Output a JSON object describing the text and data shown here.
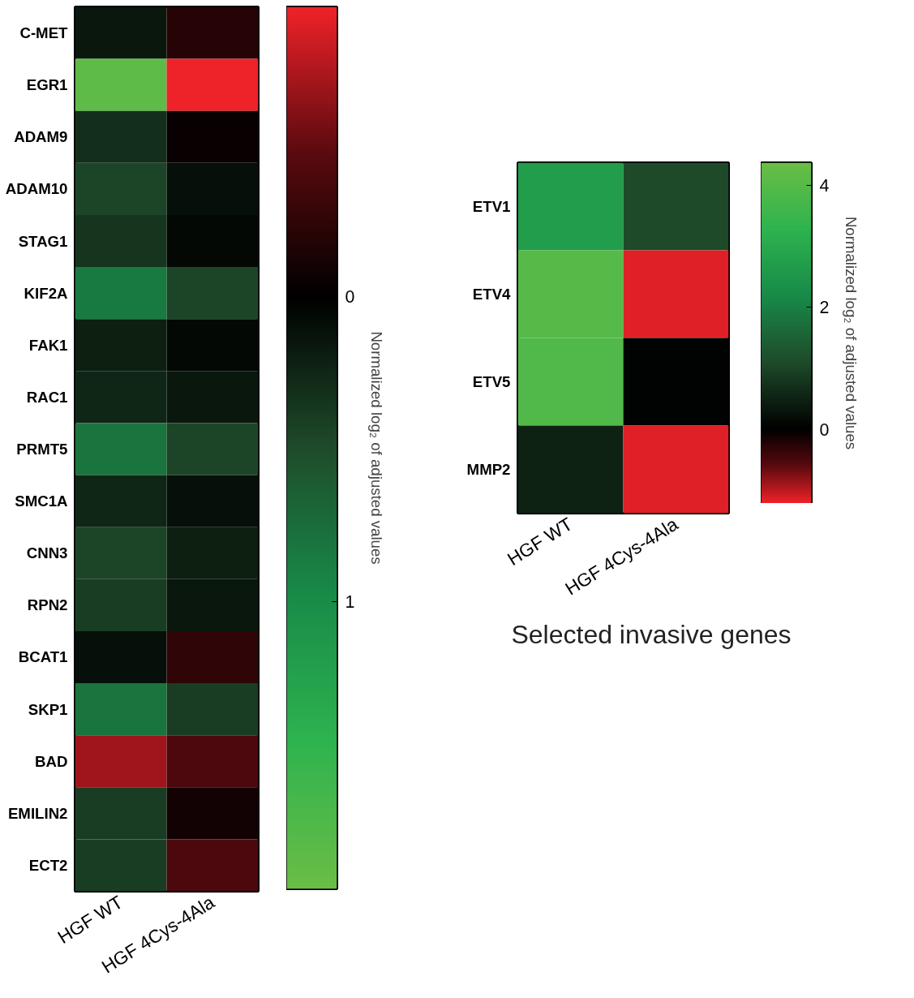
{
  "chart_data": [
    {
      "type": "heatmap",
      "categories": [
        "HGF WT",
        "HGF 4Cys-4Ala"
      ],
      "y_categories": [
        "C-MET",
        "EGR1",
        "ADAM9",
        "ADAM10",
        "STAG1",
        "KIF2A",
        "FAK1",
        "RAC1",
        "PRMT5",
        "SMC1A",
        "CNN3",
        "RPN2",
        "BCAT1",
        "SKP1",
        "BAD",
        "EMILIN2",
        "ECT2"
      ],
      "cells": [
        [
          0.15,
          -0.2
        ],
        [
          1.85,
          -0.95
        ],
        [
          0.3,
          -0.05
        ],
        [
          0.45,
          0.1
        ],
        [
          0.35,
          0.05
        ],
        [
          0.85,
          0.45
        ],
        [
          0.2,
          0.05
        ],
        [
          0.25,
          0.15
        ],
        [
          0.8,
          0.45
        ],
        [
          0.25,
          0.1
        ],
        [
          0.45,
          0.2
        ],
        [
          0.4,
          0.15
        ],
        [
          0.1,
          -0.25
        ],
        [
          0.8,
          0.4
        ],
        [
          -0.7,
          -0.4
        ],
        [
          0.4,
          -0.1
        ],
        [
          0.4,
          -0.4
        ]
      ],
      "clabel": "Normalized log₂ of adjusted values",
      "clim": [
        1.94,
        -0.95
      ],
      "cticks": [
        0,
        1
      ]
    },
    {
      "type": "heatmap",
      "title": "Selected invasive genes",
      "categories": [
        "HGF WT",
        "HGF 4Cys-4Ala"
      ],
      "y_categories": [
        "ETV1",
        "ETV4",
        "ETV5",
        "MMP2"
      ],
      "cells": [
        [
          2.7,
          1.1
        ],
        [
          4.0,
          -1.15
        ],
        [
          3.9,
          0.05
        ],
        [
          0.5,
          -1.15
        ]
      ],
      "clabel": "Normalized log₂ of adjusted values",
      "clim": [
        -1.21,
        4.37
      ],
      "cticks": [
        0,
        2,
        4
      ]
    }
  ]
}
